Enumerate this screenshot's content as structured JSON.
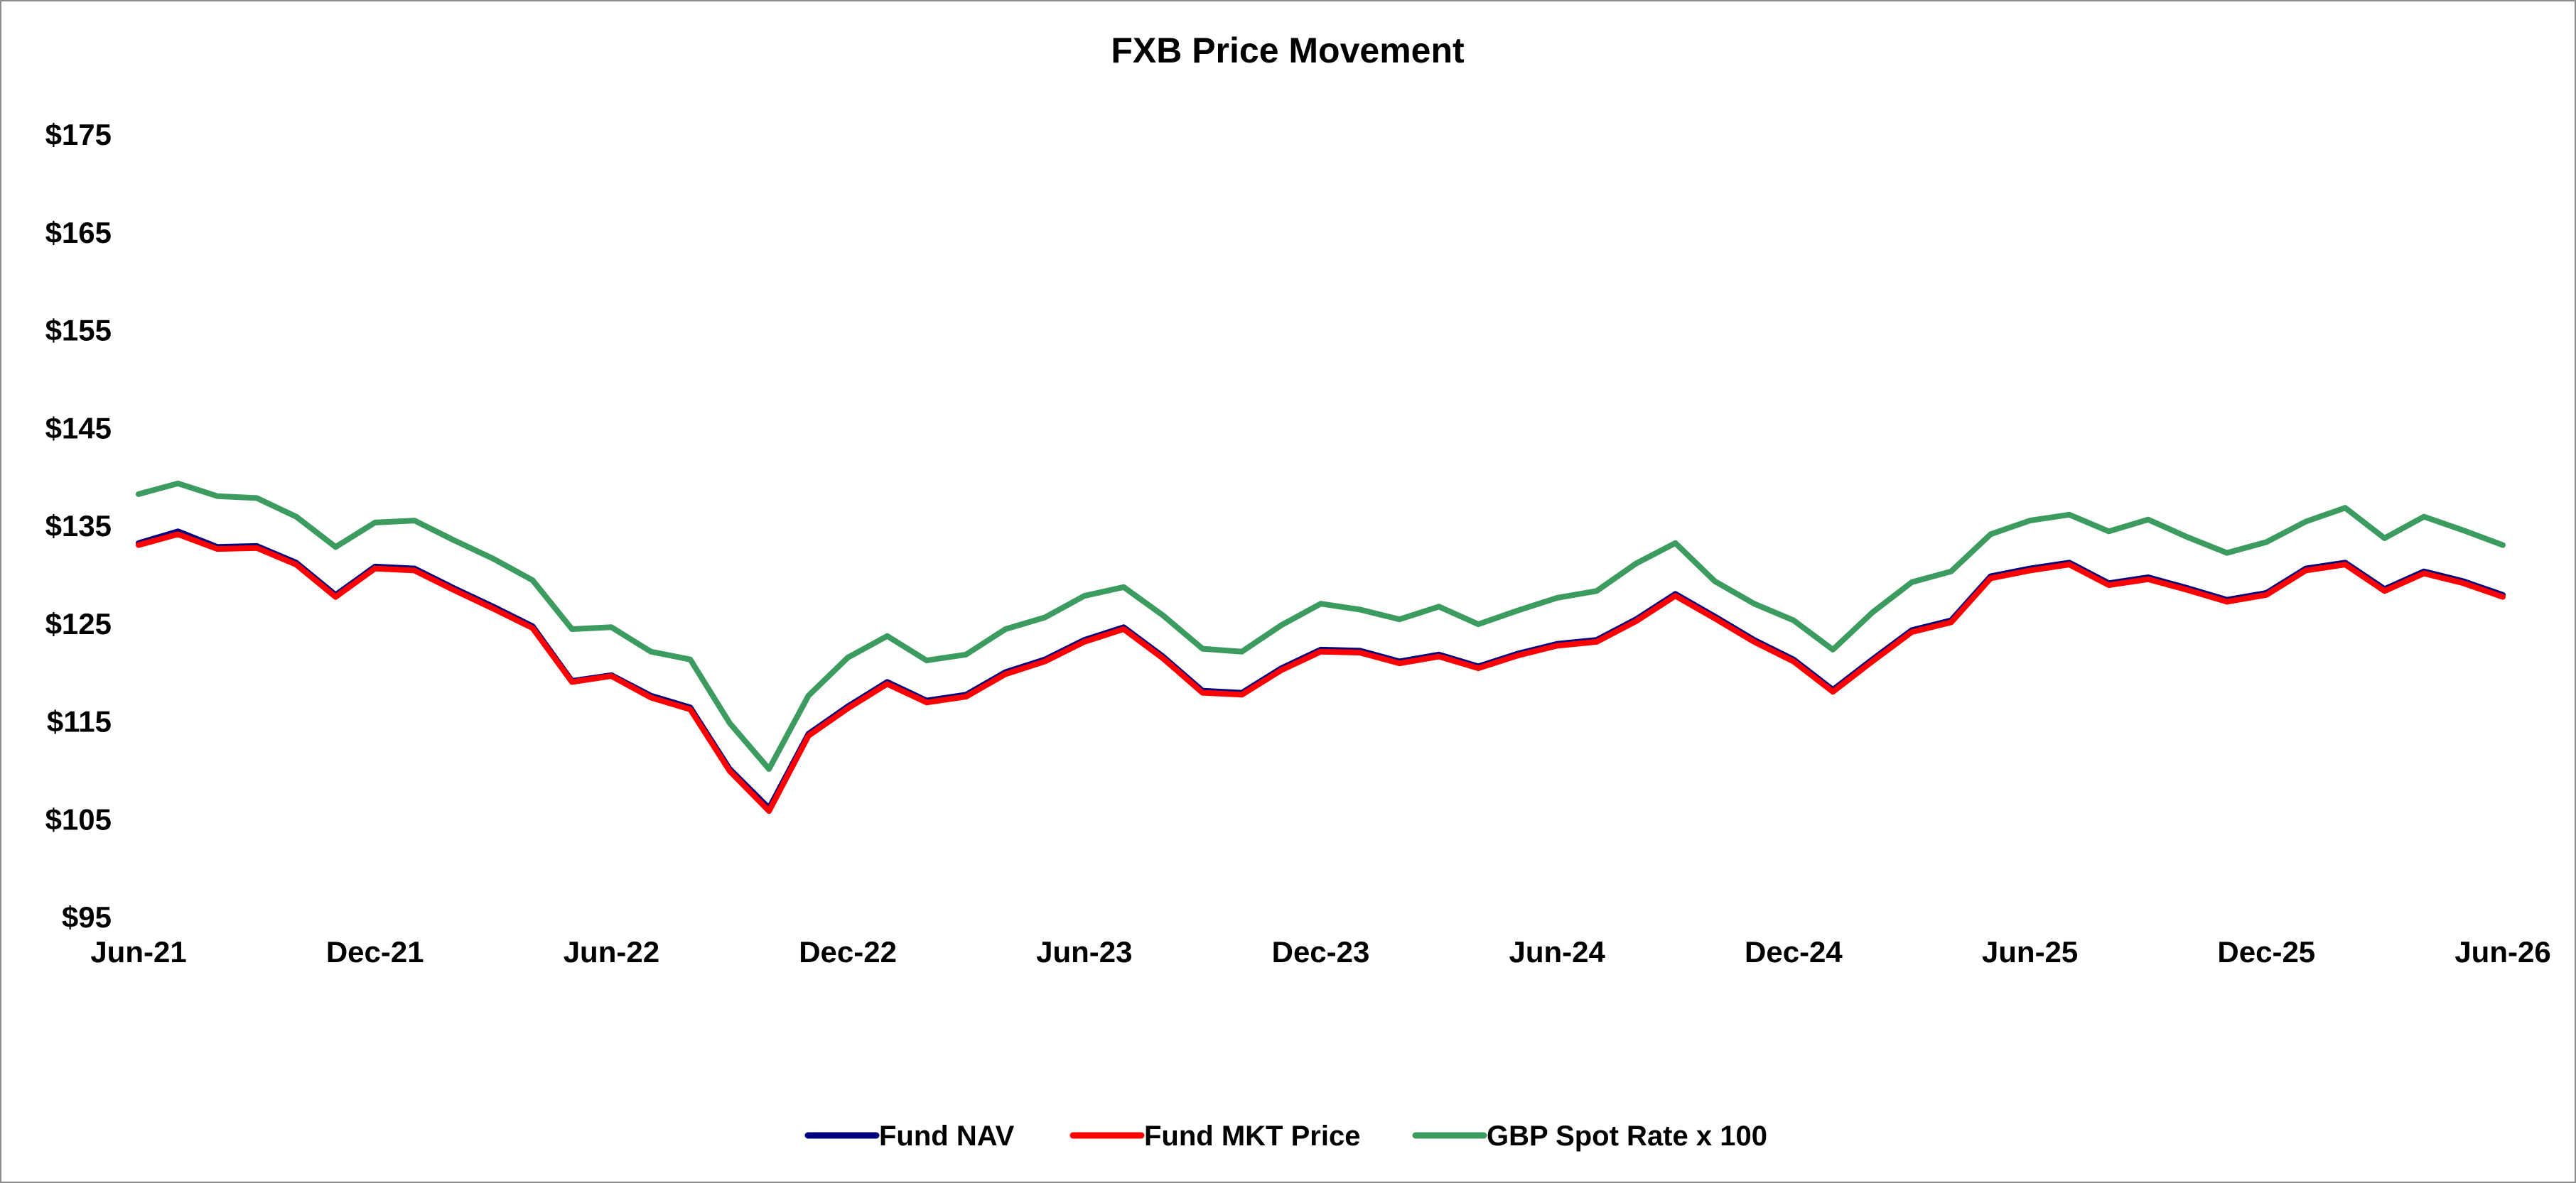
{
  "chart_data": {
    "type": "line",
    "title": "FXB Price Movement",
    "xlabel": "",
    "ylabel": "",
    "ylim": [
      95,
      175
    ],
    "y_ticks": [
      95,
      105,
      115,
      125,
      135,
      145,
      155,
      165,
      175
    ],
    "y_tick_labels": [
      "$95",
      "$105",
      "$115",
      "$125",
      "$135",
      "$145",
      "$155",
      "$165",
      "$175"
    ],
    "x_ticks": [
      "2021-06",
      "2021-12",
      "2022-06",
      "2022-12",
      "2023-06",
      "2023-12",
      "2024-06",
      "2024-12",
      "2025-06",
      "2025-12",
      "2026-06"
    ],
    "x_tick_labels": [
      "Jun-21",
      "Dec-21",
      "Jun-22",
      "Dec-22",
      "Jun-23",
      "Dec-23",
      "Jun-24",
      "Dec-24",
      "Jun-25",
      "Dec-25",
      "Jun-26"
    ],
    "x": [
      "2021-06",
      "2021-07",
      "2021-08",
      "2021-09",
      "2021-10",
      "2021-11",
      "2021-12",
      "2022-01",
      "2022-02",
      "2022-03",
      "2022-04",
      "2022-05",
      "2022-06",
      "2022-07",
      "2022-08",
      "2022-09",
      "2022-10",
      "2022-11",
      "2022-12",
      "2023-01",
      "2023-02",
      "2023-03",
      "2023-04",
      "2023-05",
      "2023-06",
      "2023-07",
      "2023-08",
      "2023-09",
      "2023-10",
      "2023-11",
      "2023-12",
      "2024-01",
      "2024-02",
      "2024-03",
      "2024-04",
      "2024-05",
      "2024-06",
      "2024-07",
      "2024-08",
      "2024-09",
      "2024-10",
      "2024-11",
      "2024-12",
      "2025-01",
      "2025-02",
      "2025-03",
      "2025-04",
      "2025-05",
      "2025-06",
      "2025-07",
      "2025-08",
      "2025-09",
      "2025-10",
      "2025-11",
      "2025-12",
      "2026-01",
      "2026-02",
      "2026-03",
      "2026-04",
      "2026-05",
      "2026-06"
    ],
    "grid": false,
    "legend_position": "bottom",
    "series": [
      {
        "name": "Fund NAV",
        "color": "#00007f",
        "values": [
          133.2,
          134.4,
          132.8,
          132.9,
          131.2,
          127.9,
          130.8,
          130.6,
          128.6,
          126.7,
          124.7,
          119.1,
          119.7,
          117.6,
          116.4,
          110.1,
          106.1,
          113.7,
          116.5,
          119.0,
          117.1,
          117.7,
          120.0,
          121.3,
          123.3,
          124.6,
          121.6,
          118.1,
          117.9,
          120.4,
          122.3,
          122.2,
          121.1,
          121.8,
          120.6,
          121.9,
          122.9,
          123.3,
          125.4,
          128.0,
          125.7,
          123.3,
          121.3,
          118.2,
          121.3,
          124.3,
          125.3,
          129.8,
          130.6,
          131.2,
          129.1,
          129.7,
          128.6,
          127.4,
          128.1,
          130.6,
          131.2,
          128.5,
          130.3,
          129.3,
          127.9
        ]
      },
      {
        "name": "Fund MKT Price",
        "color": "#ff0000",
        "values": [
          133.0,
          134.1,
          132.6,
          132.7,
          131.0,
          127.7,
          130.6,
          130.4,
          128.4,
          126.5,
          124.5,
          119.0,
          119.6,
          117.4,
          116.2,
          109.9,
          105.8,
          113.5,
          116.3,
          118.8,
          116.9,
          117.5,
          119.8,
          121.1,
          123.1,
          124.4,
          121.4,
          117.9,
          117.7,
          120.2,
          122.1,
          122.0,
          120.9,
          121.6,
          120.4,
          121.7,
          122.7,
          123.1,
          125.2,
          127.8,
          125.5,
          123.1,
          121.1,
          118.0,
          121.1,
          124.1,
          125.1,
          129.6,
          130.4,
          131.0,
          128.9,
          129.5,
          128.4,
          127.2,
          127.9,
          130.4,
          131.0,
          128.3,
          130.1,
          129.1,
          127.7
        ]
      },
      {
        "name": "GBP Spot Rate x 100",
        "color": "#3c9b5f",
        "values": [
          138.2,
          139.3,
          138.0,
          137.8,
          135.9,
          132.8,
          135.3,
          135.5,
          133.5,
          131.6,
          129.4,
          124.4,
          124.6,
          122.1,
          121.3,
          114.8,
          110.1,
          117.6,
          121.5,
          123.7,
          121.2,
          121.8,
          124.4,
          125.6,
          127.8,
          128.7,
          125.8,
          122.4,
          122.1,
          124.8,
          127.0,
          126.4,
          125.4,
          126.7,
          124.9,
          126.3,
          127.6,
          128.3,
          131.1,
          133.2,
          129.3,
          127.0,
          125.3,
          122.3,
          126.1,
          129.2,
          130.3,
          134.1,
          135.5,
          136.1,
          134.4,
          135.6,
          133.8,
          132.2,
          133.3,
          135.4,
          136.8,
          133.7,
          135.9,
          134.5,
          133.0
        ]
      }
    ]
  }
}
